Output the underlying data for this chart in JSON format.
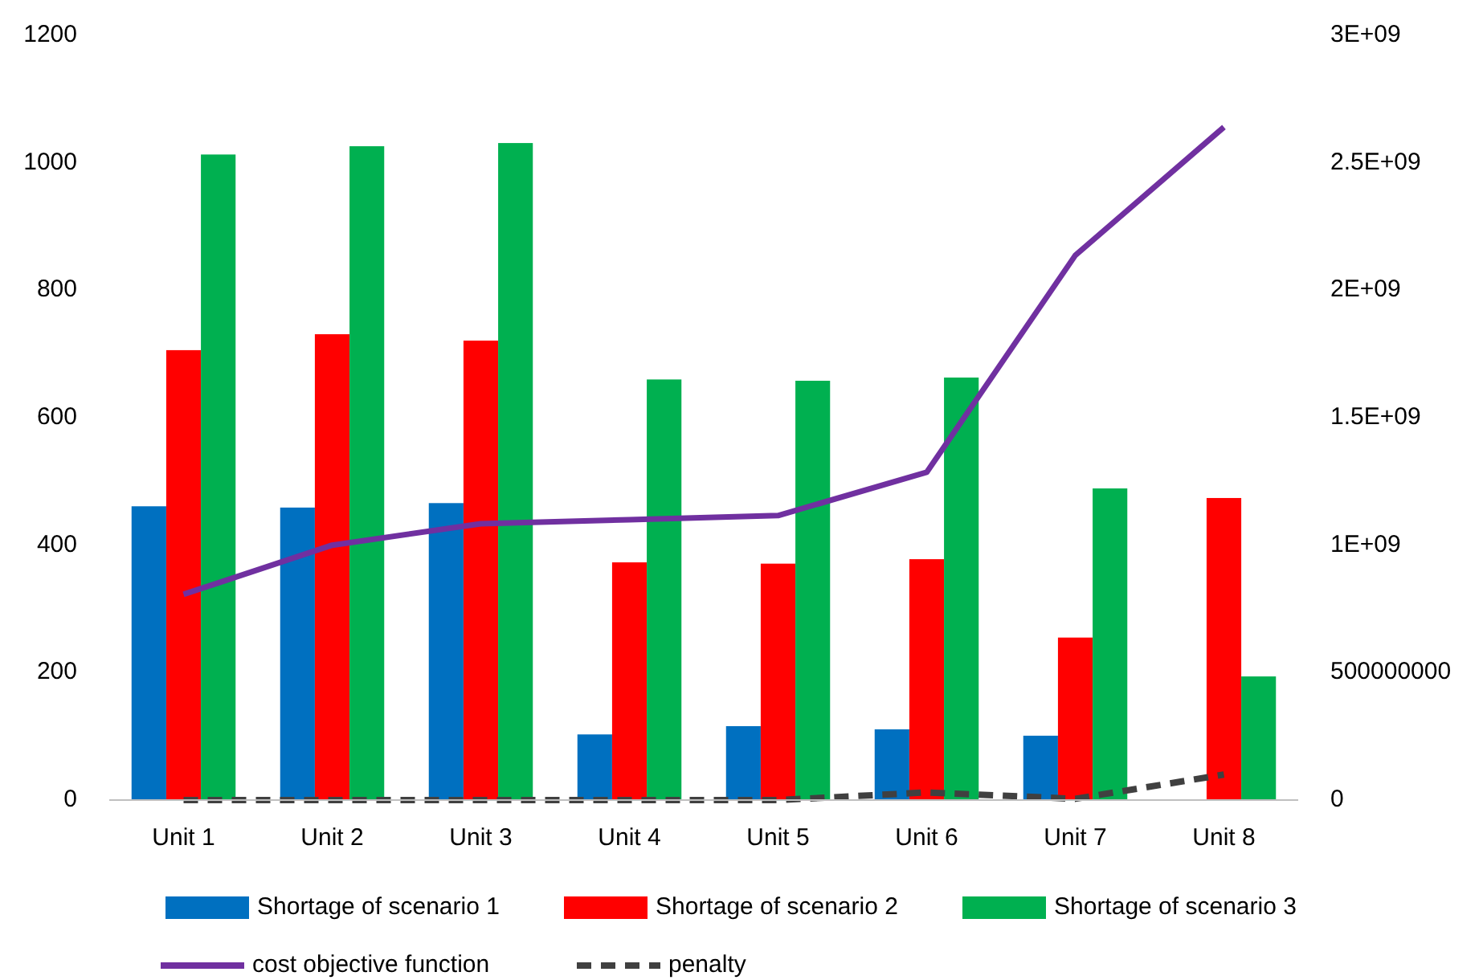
{
  "chart_data": {
    "type": "bar",
    "categories": [
      "Unit 1",
      "Unit 2",
      "Unit 3",
      "Unit 4",
      "Unit 5",
      "Unit 6",
      "Unit 7",
      "Unit 8"
    ],
    "series": [
      {
        "name": "Shortage of scenario 1",
        "color": "#0070c0",
        "values": [
          461,
          459,
          466,
          103,
          116,
          111,
          101,
          null
        ]
      },
      {
        "name": "Shortage of scenario 2",
        "color": "#ff0000",
        "values": [
          706,
          731,
          721,
          373,
          371,
          378,
          255,
          474
        ]
      },
      {
        "name": "Shortage of scenario 3",
        "color": "#00b050",
        "values": [
          1013,
          1026,
          1031,
          660,
          658,
          663,
          489,
          194
        ]
      },
      {
        "name": "cost objective function",
        "type": "line",
        "axis": "y2",
        "color": "#7030a0",
        "line_style": "solid",
        "values": [
          807000000,
          1000000000,
          1084000000,
          1100000000,
          1116000000,
          1286000000,
          2137000000,
          2640000000
        ]
      },
      {
        "name": "penalty",
        "type": "line",
        "axis": "y2",
        "color": "#404040",
        "line_style": "dashed",
        "values": [
          0,
          0,
          0,
          0,
          0,
          30000000,
          5000000,
          100000000
        ]
      }
    ],
    "ylim": [
      0,
      1200
    ],
    "yticks": [
      0,
      200,
      400,
      600,
      800,
      1000,
      1200
    ],
    "y2lim": [
      0,
      3000000000
    ],
    "y2ticks": [
      0,
      {
        "value": 500000000,
        "label": "500000000"
      },
      {
        "value": 1000000000,
        "label": "1E+09"
      },
      {
        "value": 1500000000,
        "label": "1.5E+09"
      },
      {
        "value": 2000000000,
        "label": "2E+09"
      },
      {
        "value": 2500000000,
        "label": "2.5E+09"
      },
      {
        "value": 3000000000,
        "label": "3E+09"
      }
    ],
    "grid": false,
    "legend": "bottom"
  }
}
